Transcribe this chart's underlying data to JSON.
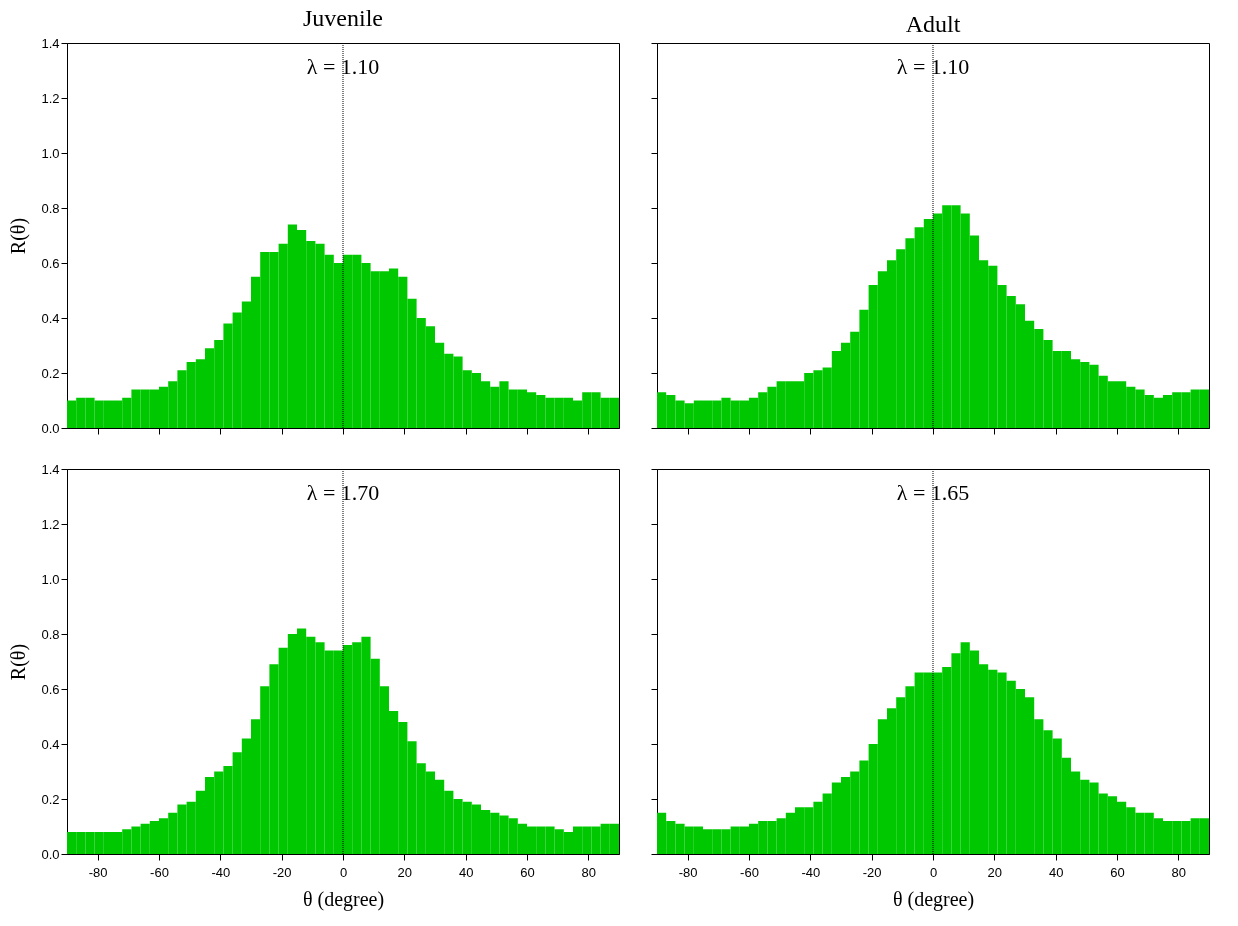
{
  "chart_data": [
    {
      "type": "histogram",
      "title": "Juvenile",
      "ylabel": "R(θ)",
      "annotations": [
        "λ = 1.10"
      ],
      "color": "#00c800",
      "bins": [
        -90,
        -87,
        -84,
        -81,
        -78,
        -75,
        -72,
        -69,
        -66,
        -63,
        -60,
        -57,
        -54,
        -51,
        -48,
        -45,
        -42,
        -39,
        -36,
        -33,
        -30,
        -27,
        -24,
        -21,
        -18,
        -15,
        -12,
        -9,
        -6,
        -3,
        0,
        3,
        6,
        9,
        12,
        15,
        18,
        21,
        24,
        27,
        30,
        33,
        36,
        39,
        42,
        45,
        48,
        51,
        54,
        57,
        60,
        63,
        66,
        69,
        72,
        75,
        78,
        81,
        84,
        87,
        90
      ],
      "values": [
        0.1,
        0.11,
        0.11,
        0.1,
        0.1,
        0.1,
        0.11,
        0.14,
        0.14,
        0.14,
        0.15,
        0.17,
        0.21,
        0.24,
        0.25,
        0.29,
        0.32,
        0.38,
        0.42,
        0.46,
        0.55,
        0.64,
        0.64,
        0.67,
        0.74,
        0.72,
        0.68,
        0.67,
        0.63,
        0.6,
        0.63,
        0.63,
        0.6,
        0.57,
        0.57,
        0.58,
        0.55,
        0.47,
        0.4,
        0.37,
        0.31,
        0.27,
        0.26,
        0.21,
        0.2,
        0.17,
        0.15,
        0.17,
        0.14,
        0.14,
        0.13,
        0.12,
        0.11,
        0.11,
        0.11,
        0.1,
        0.13,
        0.13,
        0.11,
        0.11
      ],
      "xlim": [
        -90,
        90
      ],
      "ylim": [
        0,
        1.4
      ],
      "xticks": [
        -80,
        -60,
        -40,
        -20,
        0,
        20,
        40,
        60,
        80
      ],
      "yticks": [
        {
          "value": 0,
          "label": "0.0"
        },
        {
          "value": 0.2,
          "label": "0.2"
        },
        {
          "value": 0.4,
          "label": "0.4"
        },
        {
          "value": 0.6,
          "label": "0.6"
        },
        {
          "value": 0.8,
          "label": "0.8"
        },
        {
          "value": 1.0,
          "label": "1.0"
        },
        {
          "value": 1.2,
          "label": "1.2"
        },
        {
          "value": 1.4,
          "label": "1.4"
        }
      ],
      "ref_lines": [
        {
          "axis": "x",
          "value": 0,
          "line_style": "dotted",
          "color": "#000000"
        }
      ],
      "tick_labels": "y",
      "grid": false
    },
    {
      "type": "histogram",
      "title": "Adult",
      "annotations": [
        "λ = 1.10"
      ],
      "color": "#00c800",
      "bins": [
        -90,
        -87,
        -84,
        -81,
        -78,
        -75,
        -72,
        -69,
        -66,
        -63,
        -60,
        -57,
        -54,
        -51,
        -48,
        -45,
        -42,
        -39,
        -36,
        -33,
        -30,
        -27,
        -24,
        -21,
        -18,
        -15,
        -12,
        -9,
        -6,
        -3,
        0,
        3,
        6,
        9,
        12,
        15,
        18,
        21,
        24,
        27,
        30,
        33,
        36,
        39,
        42,
        45,
        48,
        51,
        54,
        57,
        60,
        63,
        66,
        69,
        72,
        75,
        78,
        81,
        84,
        87,
        90
      ],
      "values": [
        0.13,
        0.12,
        0.1,
        0.09,
        0.1,
        0.1,
        0.1,
        0.11,
        0.1,
        0.1,
        0.11,
        0.13,
        0.15,
        0.17,
        0.17,
        0.17,
        0.2,
        0.21,
        0.22,
        0.28,
        0.31,
        0.35,
        0.43,
        0.52,
        0.57,
        0.61,
        0.65,
        0.69,
        0.73,
        0.76,
        0.78,
        0.81,
        0.81,
        0.78,
        0.7,
        0.61,
        0.59,
        0.52,
        0.48,
        0.45,
        0.39,
        0.36,
        0.32,
        0.28,
        0.28,
        0.25,
        0.24,
        0.23,
        0.19,
        0.17,
        0.17,
        0.15,
        0.14,
        0.12,
        0.11,
        0.12,
        0.13,
        0.13,
        0.14,
        0.14
      ],
      "xlim": [
        -90,
        90
      ],
      "ylim": [
        0,
        1.4
      ],
      "xticks": [
        -80,
        -60,
        -40,
        -20,
        0,
        20,
        40,
        60,
        80
      ],
      "yticks": [
        {
          "value": 0,
          "label": null
        },
        {
          "value": 0.2,
          "label": null
        },
        {
          "value": 0.4,
          "label": null
        },
        {
          "value": 0.6,
          "label": null
        },
        {
          "value": 0.8,
          "label": null
        },
        {
          "value": 1.0,
          "label": null
        },
        {
          "value": 1.2,
          "label": null
        },
        {
          "value": 1.4,
          "label": null
        }
      ],
      "ref_lines": [
        {
          "axis": "x",
          "value": 0,
          "line_style": "dotted",
          "color": "#000000"
        }
      ],
      "tick_labels": false,
      "grid": false
    },
    {
      "type": "histogram",
      "xlabel": "θ (degree)",
      "ylabel": "R(θ)",
      "annotations": [
        "λ = 1.70"
      ],
      "color": "#00c800",
      "bins": [
        -90,
        -87,
        -84,
        -81,
        -78,
        -75,
        -72,
        -69,
        -66,
        -63,
        -60,
        -57,
        -54,
        -51,
        -48,
        -45,
        -42,
        -39,
        -36,
        -33,
        -30,
        -27,
        -24,
        -21,
        -18,
        -15,
        -12,
        -9,
        -6,
        -3,
        0,
        3,
        6,
        9,
        12,
        15,
        18,
        21,
        24,
        27,
        30,
        33,
        36,
        39,
        42,
        45,
        48,
        51,
        54,
        57,
        60,
        63,
        66,
        69,
        72,
        75,
        78,
        81,
        84,
        87,
        90
      ],
      "values": [
        0.08,
        0.08,
        0.08,
        0.08,
        0.08,
        0.08,
        0.09,
        0.1,
        0.11,
        0.12,
        0.13,
        0.15,
        0.18,
        0.19,
        0.23,
        0.28,
        0.3,
        0.32,
        0.37,
        0.42,
        0.49,
        0.61,
        0.69,
        0.75,
        0.8,
        0.82,
        0.79,
        0.77,
        0.74,
        0.74,
        0.76,
        0.77,
        0.79,
        0.71,
        0.61,
        0.52,
        0.48,
        0.41,
        0.33,
        0.3,
        0.27,
        0.23,
        0.2,
        0.19,
        0.18,
        0.16,
        0.15,
        0.14,
        0.13,
        0.11,
        0.1,
        0.1,
        0.1,
        0.09,
        0.08,
        0.1,
        0.1,
        0.1,
        0.11,
        0.11
      ],
      "xlim": [
        -90,
        90
      ],
      "ylim": [
        0,
        1.4
      ],
      "xticks": [
        -80,
        -60,
        -40,
        -20,
        0,
        20,
        40,
        60,
        80
      ],
      "yticks": [
        {
          "value": 0,
          "label": "0.0"
        },
        {
          "value": 0.2,
          "label": "0.2"
        },
        {
          "value": 0.4,
          "label": "0.4"
        },
        {
          "value": 0.6,
          "label": "0.6"
        },
        {
          "value": 0.8,
          "label": "0.8"
        },
        {
          "value": 1.0,
          "label": "1.0"
        },
        {
          "value": 1.2,
          "label": "1.2"
        },
        {
          "value": 1.4,
          "label": "1.4"
        }
      ],
      "ref_lines": [
        {
          "axis": "x",
          "value": 0,
          "line_style": "dotted",
          "color": "#000000"
        }
      ],
      "grid": false
    },
    {
      "type": "histogram",
      "xlabel": "θ (degree)",
      "annotations": [
        "λ = 1.65"
      ],
      "color": "#00c800",
      "bins": [
        -90,
        -87,
        -84,
        -81,
        -78,
        -75,
        -72,
        -69,
        -66,
        -63,
        -60,
        -57,
        -54,
        -51,
        -48,
        -45,
        -42,
        -39,
        -36,
        -33,
        -30,
        -27,
        -24,
        -21,
        -18,
        -15,
        -12,
        -9,
        -6,
        -3,
        0,
        3,
        6,
        9,
        12,
        15,
        18,
        21,
        24,
        27,
        30,
        33,
        36,
        39,
        42,
        45,
        48,
        51,
        54,
        57,
        60,
        63,
        66,
        69,
        72,
        75,
        78,
        81,
        84,
        87,
        90
      ],
      "values": [
        0.15,
        0.12,
        0.11,
        0.1,
        0.1,
        0.09,
        0.09,
        0.09,
        0.1,
        0.1,
        0.11,
        0.12,
        0.12,
        0.13,
        0.15,
        0.17,
        0.17,
        0.19,
        0.22,
        0.26,
        0.28,
        0.3,
        0.34,
        0.4,
        0.49,
        0.53,
        0.57,
        0.61,
        0.66,
        0.66,
        0.66,
        0.68,
        0.73,
        0.77,
        0.74,
        0.69,
        0.67,
        0.66,
        0.63,
        0.6,
        0.57,
        0.49,
        0.45,
        0.42,
        0.35,
        0.3,
        0.27,
        0.26,
        0.22,
        0.21,
        0.19,
        0.17,
        0.15,
        0.15,
        0.13,
        0.12,
        0.12,
        0.12,
        0.13,
        0.13
      ],
      "xlim": [
        -90,
        90
      ],
      "ylim": [
        0,
        1.4
      ],
      "xticks": [
        -80,
        -60,
        -40,
        -20,
        0,
        20,
        40,
        60,
        80
      ],
      "yticks": [
        {
          "value": 0,
          "label": null
        },
        {
          "value": 0.2,
          "label": null
        },
        {
          "value": 0.4,
          "label": null
        },
        {
          "value": 0.6,
          "label": null
        },
        {
          "value": 0.8,
          "label": null
        },
        {
          "value": 1.0,
          "label": null
        },
        {
          "value": 1.2,
          "label": null
        },
        {
          "value": 1.4,
          "label": null
        }
      ],
      "ref_lines": [
        {
          "axis": "x",
          "value": 0,
          "line_style": "dotted",
          "color": "#000000"
        }
      ],
      "tick_labels": "x",
      "grid": false
    }
  ]
}
